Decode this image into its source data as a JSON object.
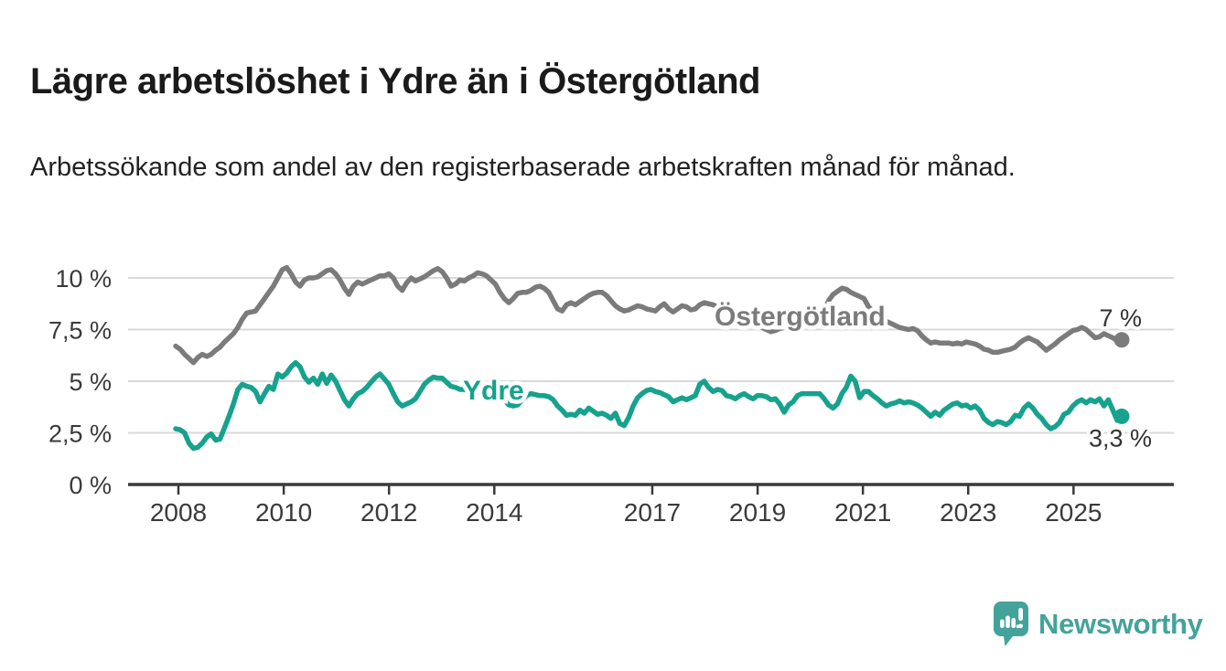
{
  "header": {
    "title": "Lägre arbetslöshet i Ydre än i Östergötland",
    "subtitle": "Arbetssökande som andel av den registerbaserade arbetskraften månad för månad."
  },
  "footer": {
    "brand": "Newsworthy",
    "brand_color": "#43a39b"
  },
  "chart_data": {
    "type": "line",
    "title": "Lägre arbetslöshet i Ydre än i Östergötland",
    "subtitle": "Arbetssökande som andel av den registerbaserade arbetskraften månad för månad.",
    "unit": "%",
    "frequency": "monthly",
    "x_start": "2008-01",
    "x_end": "2025-10",
    "ylim": [
      0,
      11
    ],
    "grid": true,
    "legend_position": "inline-labels",
    "colors": {
      "grid": "#d9d9d9",
      "axis": "#3a3a3a",
      "tick_label": "#3a3a3a",
      "value_label": "#333333"
    },
    "y_axis": {
      "ticks": [
        {
          "label": "0 %",
          "value": 0
        },
        {
          "label": "2,5 %",
          "value": 2.5
        },
        {
          "label": "5 %",
          "value": 5
        },
        {
          "label": "7,5 %",
          "value": 7.5
        },
        {
          "label": "10 %",
          "value": 10
        }
      ]
    },
    "x_axis": {
      "ticks": [
        {
          "label": "2008",
          "year": 2008
        },
        {
          "label": "2010",
          "year": 2010
        },
        {
          "label": "2012",
          "year": 2012
        },
        {
          "label": "2014",
          "year": 2014
        },
        {
          "label": "2017",
          "year": 2017
        },
        {
          "label": "2019",
          "year": 2019
        },
        {
          "label": "2021",
          "year": 2021
        },
        {
          "label": "2023",
          "year": 2023
        },
        {
          "label": "2025",
          "year": 2025
        }
      ]
    },
    "series": [
      {
        "name": "Östergötland",
        "color": "#7b7b7b",
        "end_label": "7 %",
        "end_value": 7.0,
        "values": [
          6.7,
          6.55,
          6.3,
          6.1,
          5.9,
          6.15,
          6.3,
          6.2,
          6.3,
          6.5,
          6.65,
          6.9,
          7.1,
          7.3,
          7.6,
          8.0,
          8.3,
          8.35,
          8.4,
          8.7,
          9.0,
          9.3,
          9.6,
          10.0,
          10.4,
          10.5,
          10.2,
          9.8,
          9.6,
          9.9,
          10.0,
          10.0,
          10.05,
          10.2,
          10.35,
          10.4,
          10.2,
          9.9,
          9.5,
          9.2,
          9.6,
          9.8,
          9.7,
          9.8,
          9.9,
          10.0,
          10.1,
          10.1,
          10.2,
          10.0,
          9.6,
          9.4,
          9.75,
          10.0,
          9.85,
          9.95,
          10.05,
          10.2,
          10.35,
          10.45,
          10.3,
          10.0,
          9.6,
          9.7,
          9.9,
          9.85,
          10.0,
          10.1,
          10.25,
          10.2,
          10.1,
          9.9,
          9.7,
          9.3,
          9.0,
          8.8,
          9.0,
          9.25,
          9.3,
          9.3,
          9.4,
          9.55,
          9.6,
          9.5,
          9.3,
          8.9,
          8.5,
          8.4,
          8.7,
          8.8,
          8.7,
          8.85,
          9.0,
          9.15,
          9.25,
          9.3,
          9.3,
          9.15,
          8.9,
          8.65,
          8.5,
          8.4,
          8.45,
          8.55,
          8.65,
          8.6,
          8.5,
          8.45,
          8.4,
          8.6,
          8.75,
          8.5,
          8.35,
          8.5,
          8.65,
          8.6,
          8.45,
          8.5,
          8.7,
          8.8,
          8.75,
          8.7,
          8.6,
          8.5,
          8.4,
          8.3,
          8.2,
          8.1,
          8.0,
          7.9,
          7.8,
          7.7,
          7.6,
          7.5,
          7.4,
          7.45,
          7.55,
          7.6,
          7.7,
          7.75,
          7.8,
          7.85,
          7.9,
          7.95,
          8.0,
          8.0,
          8.3,
          8.9,
          9.2,
          9.35,
          9.5,
          9.45,
          9.3,
          9.2,
          9.1,
          9.0,
          8.6,
          8.4,
          8.2,
          8.05,
          7.9,
          7.8,
          7.7,
          7.6,
          7.55,
          7.5,
          7.55,
          7.45,
          7.2,
          7.0,
          6.85,
          6.9,
          6.85,
          6.85,
          6.85,
          6.8,
          6.85,
          6.8,
          6.9,
          6.85,
          6.8,
          6.7,
          6.55,
          6.5,
          6.4,
          6.4,
          6.45,
          6.5,
          6.55,
          6.65,
          6.85,
          7.0,
          7.1,
          7.0,
          6.9,
          6.7,
          6.5,
          6.65,
          6.8,
          7.0,
          7.15,
          7.3,
          7.45,
          7.5,
          7.6,
          7.5,
          7.3,
          7.1,
          7.15,
          7.3,
          7.2,
          7.1,
          6.95,
          7.0
        ]
      },
      {
        "name": "Ydre",
        "color": "#16a28d",
        "end_label": "3,3 %",
        "end_value": 3.3,
        "values": [
          2.7,
          2.65,
          2.5,
          2.0,
          1.75,
          1.8,
          2.0,
          2.3,
          2.45,
          2.15,
          2.2,
          2.75,
          3.3,
          3.9,
          4.6,
          4.85,
          4.75,
          4.7,
          4.5,
          4.0,
          4.4,
          4.75,
          4.6,
          5.35,
          5.2,
          5.4,
          5.7,
          5.9,
          5.7,
          5.2,
          4.95,
          5.15,
          4.85,
          5.35,
          4.9,
          5.3,
          5.0,
          4.55,
          4.1,
          3.8,
          4.15,
          4.4,
          4.5,
          4.7,
          4.95,
          5.2,
          5.35,
          5.1,
          4.85,
          4.4,
          4.0,
          3.8,
          3.9,
          4.0,
          4.15,
          4.5,
          4.85,
          5.05,
          5.2,
          5.15,
          5.15,
          4.95,
          4.75,
          4.7,
          4.6,
          4.6,
          4.55,
          4.5,
          4.45,
          4.5,
          4.45,
          4.4,
          4.45,
          4.3,
          4.1,
          3.85,
          3.8,
          3.85,
          4.1,
          4.3,
          4.4,
          4.35,
          4.3,
          4.3,
          4.25,
          4.1,
          3.8,
          3.6,
          3.35,
          3.4,
          3.35,
          3.6,
          3.45,
          3.7,
          3.55,
          3.4,
          3.45,
          3.35,
          3.2,
          3.45,
          2.95,
          2.85,
          3.25,
          3.8,
          4.2,
          4.4,
          4.55,
          4.6,
          4.5,
          4.45,
          4.35,
          4.25,
          4.0,
          4.1,
          4.2,
          4.1,
          4.2,
          4.3,
          4.85,
          5.0,
          4.7,
          4.5,
          4.6,
          4.55,
          4.3,
          4.25,
          4.15,
          4.3,
          4.4,
          4.25,
          4.15,
          4.3,
          4.3,
          4.25,
          4.1,
          4.15,
          3.9,
          3.5,
          3.85,
          4.0,
          4.3,
          4.4,
          4.4,
          4.4,
          4.4,
          4.4,
          4.15,
          3.85,
          3.7,
          3.9,
          4.4,
          4.7,
          5.25,
          5.0,
          4.2,
          4.5,
          4.5,
          4.3,
          4.15,
          3.95,
          3.8,
          3.9,
          3.95,
          4.05,
          3.95,
          4.0,
          3.95,
          3.85,
          3.7,
          3.5,
          3.3,
          3.5,
          3.35,
          3.6,
          3.75,
          3.9,
          3.95,
          3.8,
          3.85,
          3.7,
          3.8,
          3.6,
          3.2,
          3.0,
          2.9,
          3.05,
          3.0,
          2.9,
          3.05,
          3.35,
          3.3,
          3.7,
          3.9,
          3.7,
          3.4,
          3.2,
          2.9,
          2.7,
          2.8,
          3.0,
          3.4,
          3.5,
          3.8,
          4.0,
          4.1,
          3.95,
          4.1,
          4.0,
          4.15,
          3.8,
          4.1,
          3.6,
          3.1,
          3.3
        ]
      }
    ]
  }
}
